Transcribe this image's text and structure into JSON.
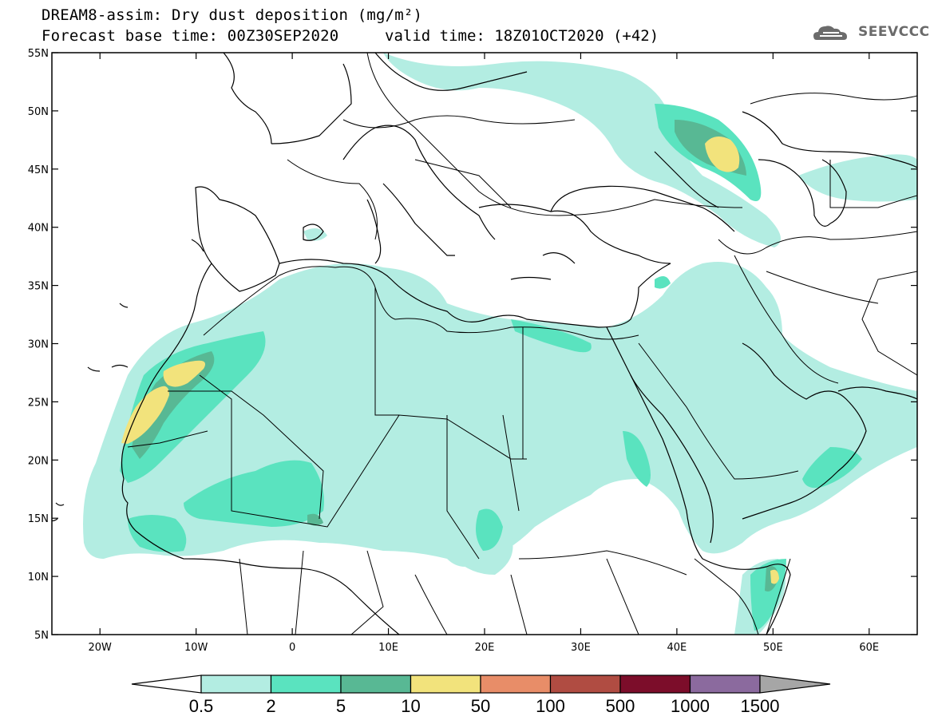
{
  "header": {
    "title_line1": "DREAM8-assim: Dry dust deposition (mg/m²)",
    "title_line2": "Forecast base time: 00Z30SEP2020",
    "valid_time": "valid time: 18Z01OCT2020 (+42)",
    "logo_text": "SEEVCCC",
    "logo_icon": "cloud-icon"
  },
  "map": {
    "lon_range": [
      -25,
      65
    ],
    "lat_range": [
      5,
      55
    ],
    "x_ticks": [
      "20W",
      "10W",
      "0",
      "10E",
      "20E",
      "30E",
      "40E",
      "50E",
      "60E"
    ],
    "y_ticks": [
      "55N",
      "50N",
      "45N",
      "40N",
      "35N",
      "30N",
      "25N",
      "20N",
      "15N",
      "10N",
      "5N"
    ]
  },
  "colorbar": {
    "labels": [
      "0.5",
      "2",
      "5",
      "10",
      "50",
      "100",
      "500",
      "1000",
      "1500"
    ],
    "colors": [
      "#b3ede2",
      "#5ae3bf",
      "#58b894",
      "#f2e37c",
      "#e88d68",
      "#b04c42",
      "#7c0d2a",
      "#8b6a9e"
    ],
    "end_left_color": "#ffffff",
    "end_right_color": "#a6a6a6"
  }
}
